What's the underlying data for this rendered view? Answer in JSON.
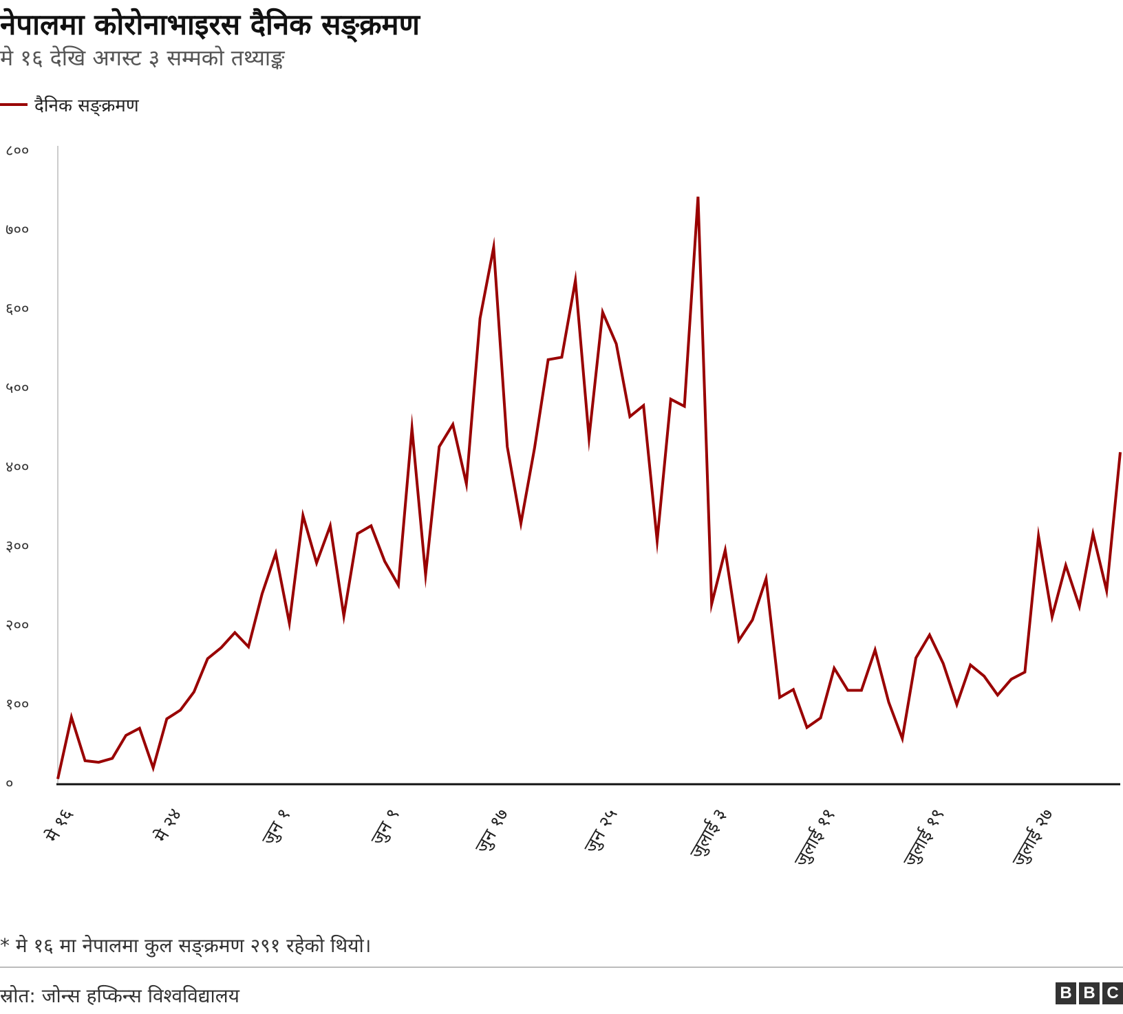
{
  "title": "नेपालमा कोरोनाभाइरस दैनिक सङ्क्रमण",
  "subtitle": "मे १६ देखि अगस्ट ३ सम्मको तथ्याङ्क",
  "legend": {
    "label": "दैनिक सङ्क्रमण",
    "color": "#990000"
  },
  "footnote": "* मे १६ मा नेपालमा कुल सङ्क्रमण २९१ रहेको थियो।",
  "source": "स्रोत: जोन्स हप्किन्स विश्वविद्यालय",
  "logo": [
    "B",
    "B",
    "C"
  ],
  "chart_data": {
    "type": "line",
    "x_ticks": [
      "मे १६",
      "मे २४",
      "जुन १",
      "जुन ९",
      "जुन १७",
      "जुन २५",
      "जुलाई ३",
      "जुलाई ११",
      "जुलाई १९",
      "जुलाई २७"
    ],
    "y_ticks": [
      "०",
      "१००",
      "२००",
      "३००",
      "४००",
      "५००",
      "६००",
      "७००",
      "८००"
    ],
    "ylim": [
      0,
      800
    ],
    "grid": false,
    "legend_position": "top-left",
    "series": [
      {
        "name": "दैनिक सङ्क्रमण",
        "color": "#990000",
        "values": [
          5,
          83,
          28,
          26,
          31,
          60,
          69,
          19,
          81,
          92,
          115,
          157,
          171,
          190,
          172,
          239,
          290,
          202,
          338,
          278,
          325,
          211,
          315,
          325,
          280,
          250,
          448,
          263,
          425,
          453,
          378,
          587,
          677,
          425,
          328,
          423,
          535,
          538,
          635,
          436,
          595,
          555,
          463,
          477,
          306,
          485,
          476,
          741,
          226,
          294,
          180,
          206,
          258,
          108,
          118,
          70,
          82,
          145,
          117,
          117,
          168,
          102,
          56,
          158,
          187,
          151,
          99,
          149,
          135,
          111,
          131,
          140,
          312,
          210,
          275,
          223,
          315,
          243,
          418
        ]
      }
    ]
  }
}
